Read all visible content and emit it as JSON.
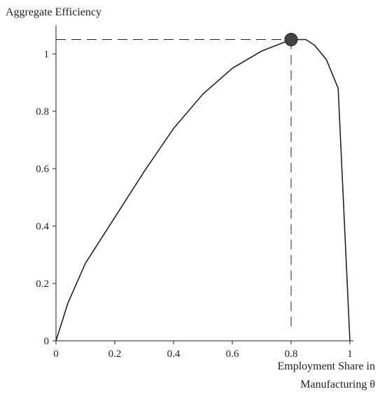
{
  "chart_data": {
    "type": "line",
    "title": "Aggregate Efficiency",
    "xlabel": [
      "Employment Share in",
      "Manufacturing θ"
    ],
    "x": [
      0,
      0.04,
      0.1,
      0.2,
      0.3,
      0.4,
      0.5,
      0.6,
      0.7,
      0.8,
      0.85,
      0.88,
      0.92,
      0.96,
      1
    ],
    "series": [
      {
        "color": "#222222",
        "values": [
          0,
          0.13,
          0.27,
          0.43,
          0.59,
          0.74,
          0.86,
          0.95,
          1.01,
          1.05,
          1.05,
          1.03,
          0.98,
          0.88,
          0
        ]
      }
    ],
    "marker": {
      "x": 0.8,
      "y": 1.05,
      "color": "#444444"
    },
    "xlim": [
      0,
      1
    ],
    "ylim": [
      0,
      1.1
    ],
    "xticks": [
      0,
      0.2,
      0.4,
      0.6,
      0.8,
      1
    ],
    "yticks": [
      0,
      0.2,
      0.4,
      0.6,
      0.8,
      1
    ],
    "grid": false
  }
}
